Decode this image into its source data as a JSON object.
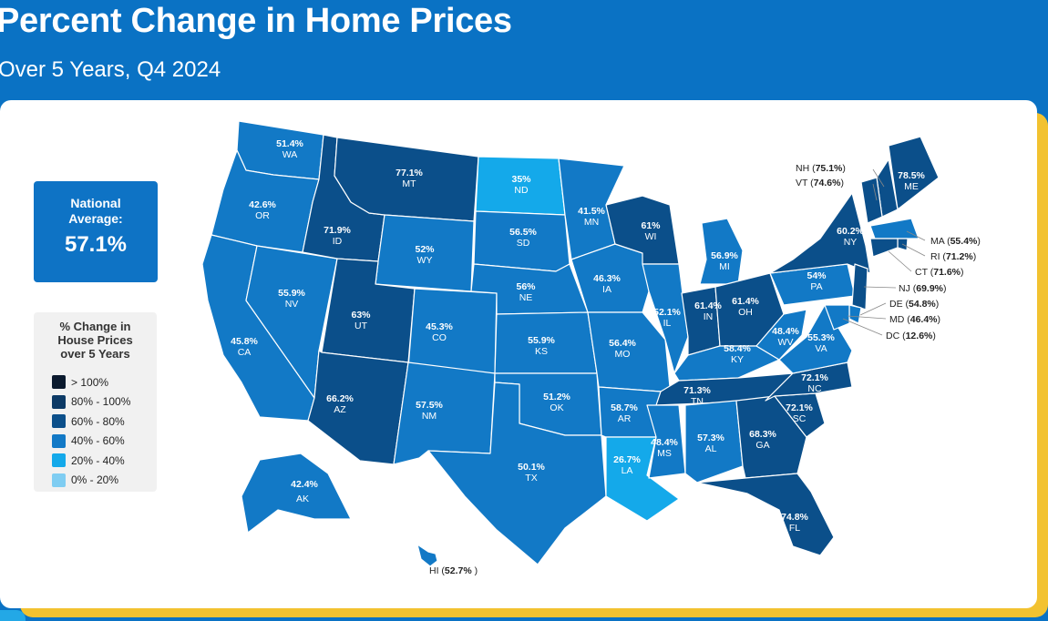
{
  "title": "Percent Change in Home Prices",
  "subtitle": "Over 5 Years, Q4 2024",
  "national": {
    "label_line1": "National",
    "label_line2": "Average:",
    "value": "57.1%"
  },
  "legend": {
    "title_line1": "% Change in",
    "title_line2": "House Prices",
    "title_line3": "over 5 Years",
    "items": [
      {
        "label": "> 100%",
        "color": "#0b1a2e"
      },
      {
        "label": "80% - 100%",
        "color": "#0c3a66"
      },
      {
        "label": "60% - 80%",
        "color": "#0b4f8a"
      },
      {
        "label": "40% - 60%",
        "color": "#1279c6"
      },
      {
        "label": "20% - 40%",
        "color": "#14a9ea"
      },
      {
        "label": "0% - 20%",
        "color": "#7fcdf2"
      }
    ]
  },
  "states": {
    "WA": "51.4%",
    "OR": "42.6%",
    "CA": "45.8%",
    "NV": "55.9%",
    "ID": "71.9%",
    "MT": "77.1%",
    "WY": "52%",
    "UT": "63%",
    "AZ": "66.2%",
    "CO": "45.3%",
    "NM": "57.5%",
    "ND": "35%",
    "SD": "56.5%",
    "NE": "56%",
    "KS": "55.9%",
    "OK": "51.2%",
    "TX": "50.1%",
    "MN": "41.5%",
    "IA": "46.3%",
    "MO": "56.4%",
    "AR": "58.7%",
    "LA": "26.7%",
    "WI": "61%",
    "IL": "52.1%",
    "MI": "56.9%",
    "IN": "61.4%",
    "OH": "61.4%",
    "KY": "58.4%",
    "TN": "71.3%",
    "MS": "48.4%",
    "AL": "57.3%",
    "GA": "68.3%",
    "FL": "74.8%",
    "SC": "72.1%",
    "NC": "72.1%",
    "VA": "55.3%",
    "WV": "48.4%",
    "PA": "54%",
    "NY": "60.2%",
    "ME": "78.5%",
    "AK": "42.4%",
    "HI": "52.7%",
    "NH": "75.1%",
    "VT": "74.6%",
    "MA": "55.4%",
    "RI": "71.2%",
    "CT": "71.6%",
    "NJ": "69.9%",
    "DE": "54.8%",
    "MD": "46.4%",
    "DC": "12.6%"
  }
}
